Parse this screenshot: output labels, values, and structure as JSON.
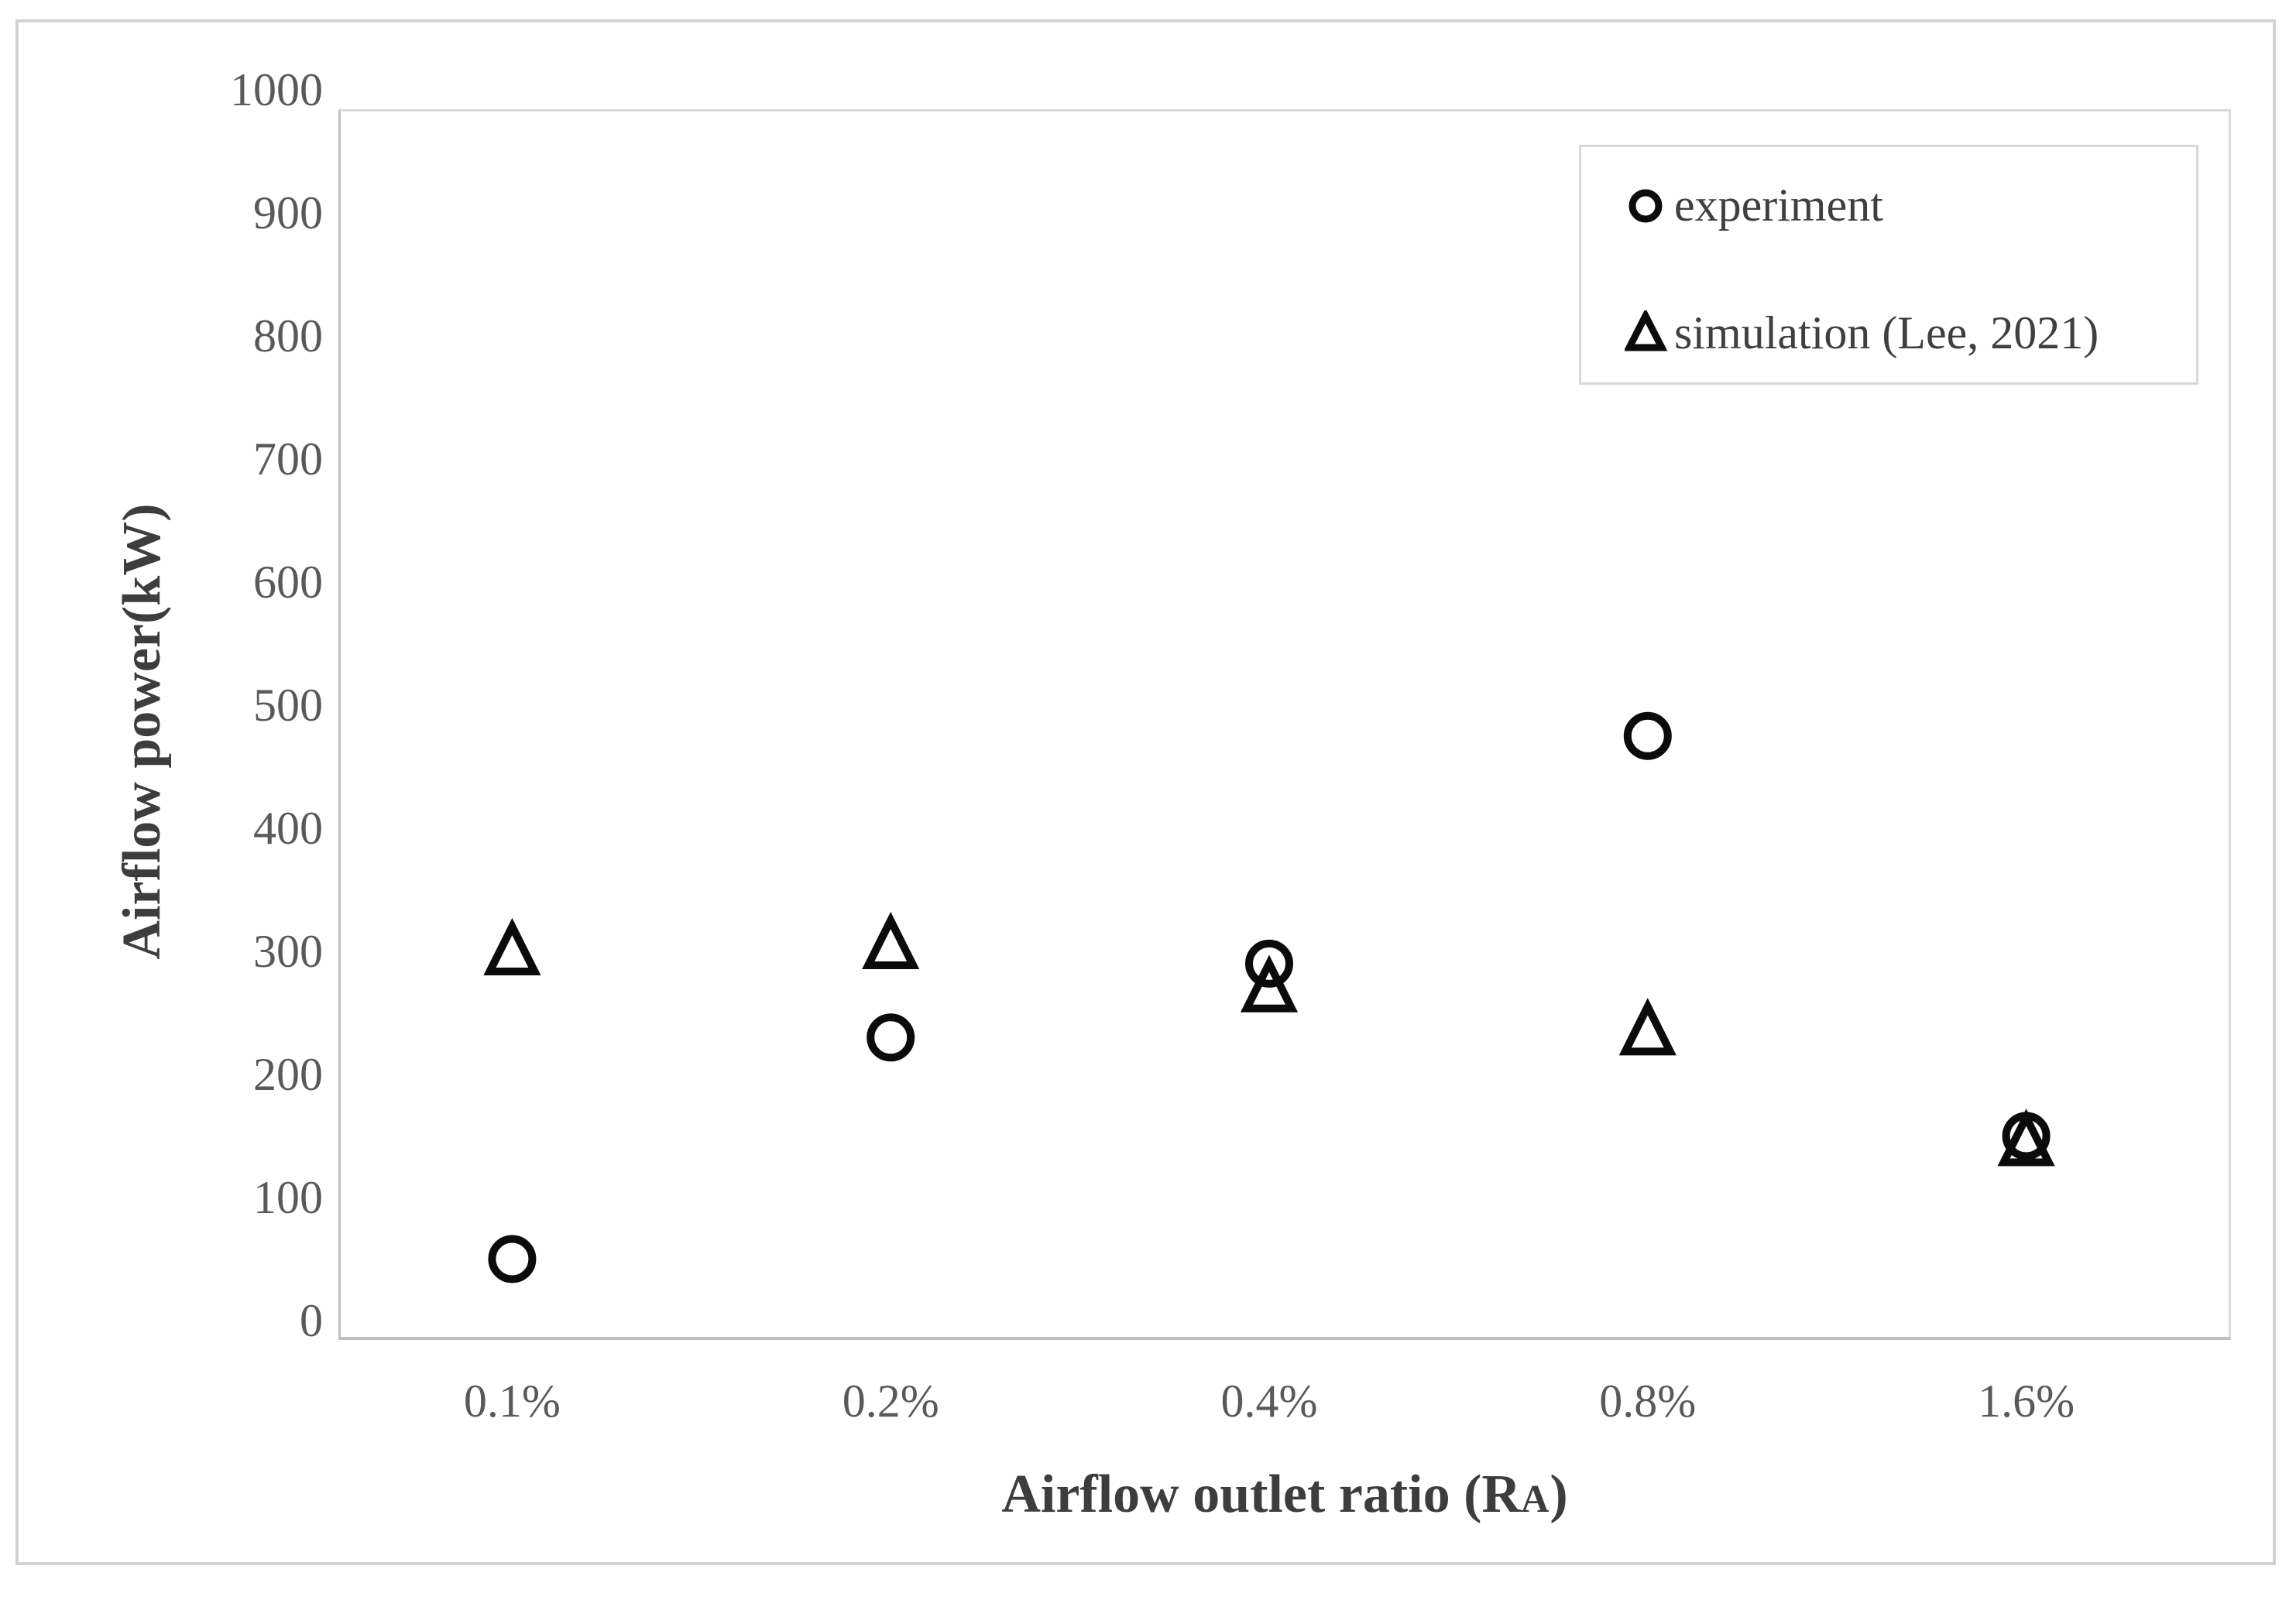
{
  "chart_data": {
    "type": "scatter",
    "title": "",
    "categories": [
      "0.1%",
      "0.2%",
      "0.4%",
      "0.8%",
      "1.6%"
    ],
    "series": [
      {
        "name": "experiment",
        "marker": "circle",
        "values": [
          50,
          230,
          290,
          475,
          150
        ]
      },
      {
        "name": "simulation (Lee, 2021)",
        "marker": "triangle",
        "values": [
          300,
          305,
          270,
          235,
          145
        ]
      }
    ],
    "xlabel": "Airflow outlet ratio (RA)",
    "xlabel_prefix": "Airflow outlet ratio (R",
    "xlabel_smallcap": "A",
    "xlabel_suffix": ")",
    "ylabel": "Airflow power(kW)",
    "ylim": [
      0,
      1000
    ],
    "ytick_step": 100,
    "yticks": [
      "0",
      "100",
      "200",
      "300",
      "400",
      "500",
      "600",
      "700",
      "800",
      "900",
      "1000"
    ],
    "grid": false,
    "legend_position": "top-right",
    "colors": {
      "marker": "#0b0b0b",
      "axis_line": "#bfbfbf",
      "plot_border": "#d9d9d9",
      "tick_label": "#595959",
      "axis_title": "#3d3d3d",
      "legend_text": "#3f3f3f",
      "legend_border": "#d9d9d9",
      "background": "#ffffff",
      "outer_border": "#d2d2d2"
    }
  },
  "legend": {
    "items": [
      {
        "label": "experiment",
        "icon": "circle-marker"
      },
      {
        "label": "simulation (Lee, 2021)",
        "icon": "triangle-marker"
      }
    ]
  }
}
